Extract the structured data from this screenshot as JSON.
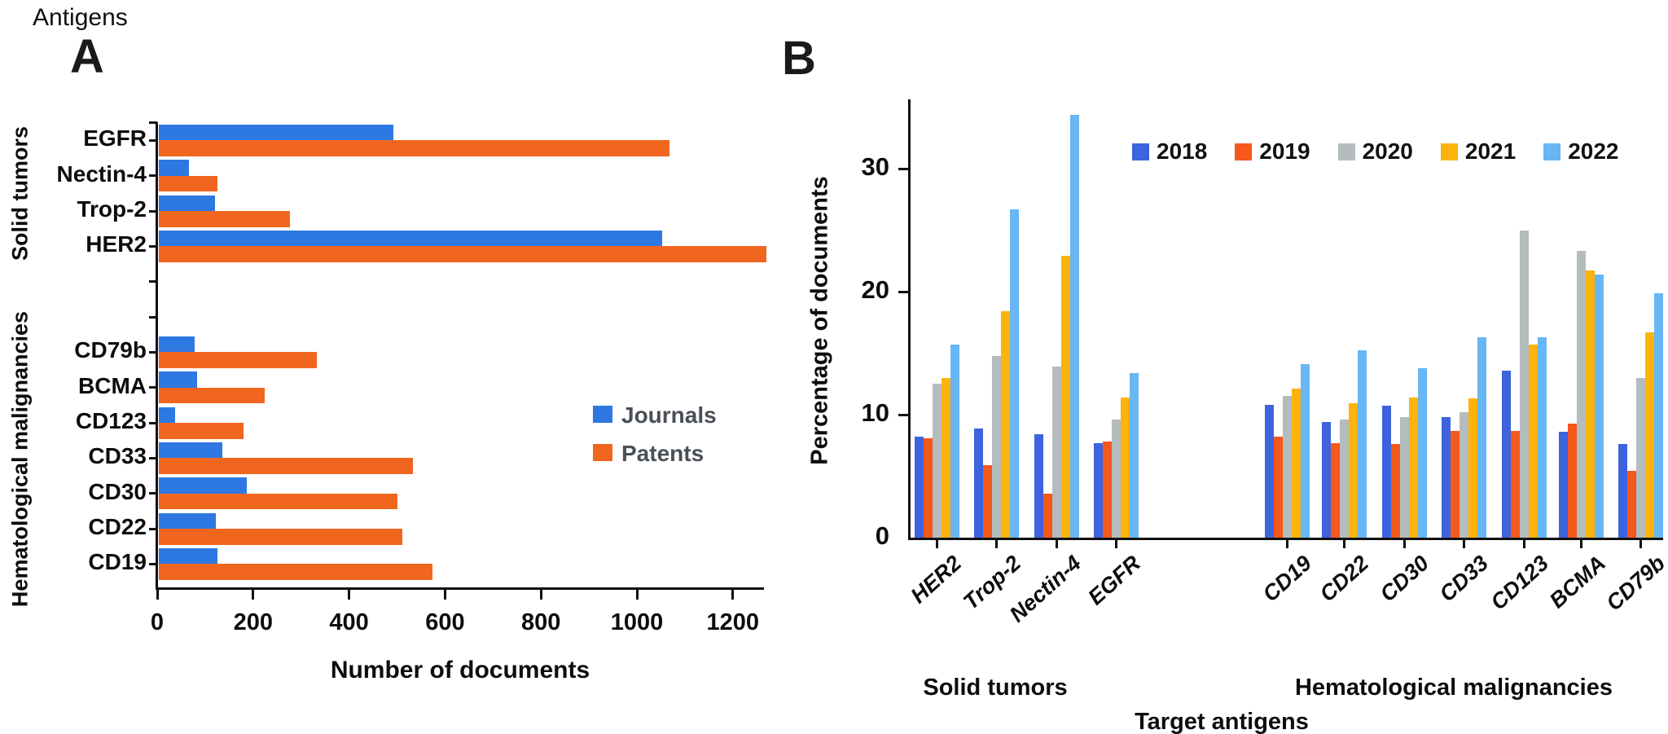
{
  "figure_title": "Antigens",
  "panel_a": {
    "label": "A",
    "xlabel": "Number of documents",
    "x_ticks": [
      0,
      200,
      400,
      600,
      800,
      1000,
      1200
    ],
    "section_solid": "Solid tumors",
    "section_hema": "Hematological malignancies",
    "legend": {
      "journals": "Journals",
      "patents": "Patents"
    },
    "colors": {
      "journals": "#2E78E2",
      "patents": "#F0661E",
      "legend_text": "#4a5056"
    }
  },
  "panel_b": {
    "label": "B",
    "ylabel": "Percentage of documents",
    "xlabel": "Target antigens",
    "y_ticks": [
      0,
      10,
      20,
      30
    ],
    "section_solid": "Solid tumors",
    "section_hema": "Hematological malignancies",
    "colors": {
      "2018": "#3E63DE",
      "2019": "#F4581B",
      "2020": "#B4BCBD",
      "2021": "#FCB30B",
      "2022": "#68B6F3"
    }
  },
  "chart_data": [
    {
      "type": "bar",
      "orientation": "horizontal",
      "panel": "A",
      "title": "Antigens",
      "xlabel": "Number of documents",
      "xlim": [
        0,
        1300
      ],
      "grid": false,
      "legend_position": "center-right",
      "sections": [
        {
          "name": "Solid tumors",
          "categories": [
            "EGFR",
            "Nectin-4",
            "Trop-2",
            "HER2"
          ]
        },
        {
          "name": "Hematological malignancies",
          "categories": [
            "CD79b",
            "BCMA",
            "CD123",
            "CD33",
            "CD30",
            "CD22",
            "CD19"
          ]
        }
      ],
      "categories": [
        "EGFR",
        "Nectin-4",
        "Trop-2",
        "HER2",
        "CD79b",
        "BCMA",
        "CD123",
        "CD33",
        "CD30",
        "CD22",
        "CD19"
      ],
      "series": [
        {
          "name": "Journals",
          "values": [
            490,
            64,
            118,
            1050,
            75,
            80,
            34,
            134,
            184,
            120,
            123
          ]
        },
        {
          "name": "Patents",
          "values": [
            1065,
            123,
            274,
            1268,
            330,
            221,
            178,
            531,
            498,
            508,
            572
          ]
        }
      ]
    },
    {
      "type": "bar",
      "orientation": "vertical",
      "panel": "B",
      "ylabel": "Percentage of documents",
      "xlabel": "Target antigens",
      "ylim": [
        0,
        35
      ],
      "grid": false,
      "legend_position": "top",
      "sections": [
        {
          "name": "Solid tumors",
          "categories": [
            "HER2",
            "Trop-2",
            "Nectin-4",
            "EGFR"
          ]
        },
        {
          "name": "Hematological malignancies",
          "categories": [
            "CD19",
            "CD22",
            "CD30",
            "CD33",
            "CD123",
            "BCMA",
            "CD79b"
          ]
        }
      ],
      "categories": [
        "HER2",
        "Trop-2",
        "Nectin-4",
        "EGFR",
        "CD19",
        "CD22",
        "CD30",
        "CD33",
        "CD123",
        "BCMA",
        "CD79b"
      ],
      "series": [
        {
          "name": "2018",
          "values": [
            8.2,
            8.9,
            8.4,
            7.7,
            10.8,
            9.4,
            10.7,
            9.8,
            13.6,
            8.6,
            7.6
          ]
        },
        {
          "name": "2019",
          "values": [
            8.1,
            5.9,
            3.6,
            7.8,
            8.2,
            7.7,
            7.6,
            8.7,
            8.7,
            9.3,
            5.4
          ]
        },
        {
          "name": "2020",
          "values": [
            12.5,
            14.8,
            13.9,
            9.6,
            11.5,
            9.6,
            9.8,
            10.2,
            25.0,
            23.3,
            13.0
          ]
        },
        {
          "name": "2021",
          "values": [
            13.0,
            18.4,
            22.9,
            11.4,
            12.1,
            10.9,
            11.4,
            11.3,
            15.7,
            21.7,
            16.7
          ]
        },
        {
          "name": "2022",
          "values": [
            15.7,
            26.7,
            34.4,
            13.4,
            14.1,
            15.2,
            13.8,
            16.3,
            16.3,
            21.4,
            19.9
          ]
        }
      ]
    }
  ]
}
